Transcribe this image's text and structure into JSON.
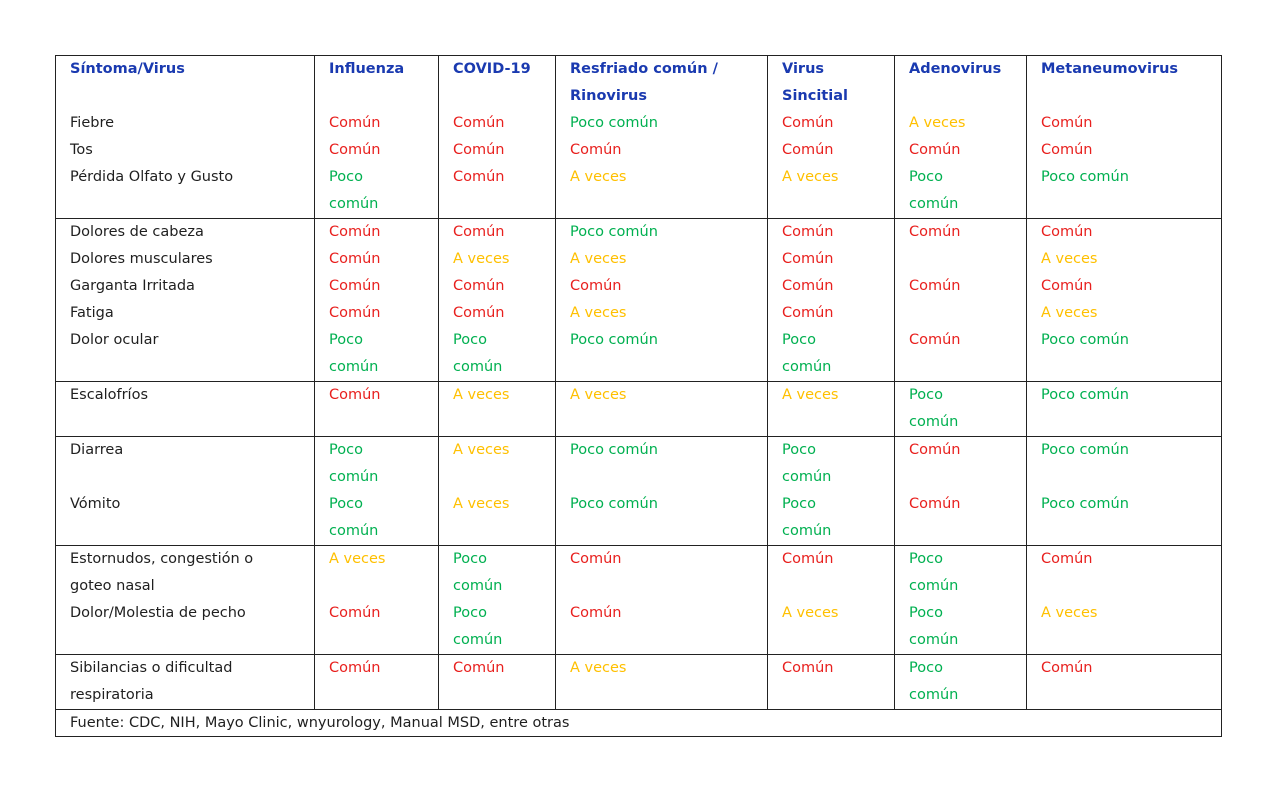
{
  "table": {
    "headers": [
      "Síntoma/Virus",
      "Influenza",
      "COVID-19",
      "Resfriado común / Rinovirus",
      "Virus Sincitial",
      "Adenovirus",
      "Metaneumovirus"
    ],
    "header_lines": {
      "symptom": [
        "Síntoma/Virus",
        ""
      ],
      "influenza": [
        "Influenza",
        ""
      ],
      "covid": [
        "COVID-19",
        ""
      ],
      "resfriado": [
        "Resfriado  común  /",
        "Rinovirus"
      ],
      "sincitial": [
        "Virus",
        "Sincitial"
      ],
      "adeno": [
        "Adenovirus",
        ""
      ],
      "metan": [
        "Metaneumovirus",
        ""
      ]
    },
    "groups": [
      {
        "rows": [
          {
            "symptom": [
              "Fiebre"
            ],
            "values": [
              [
                "Común"
              ],
              [
                "Común"
              ],
              [
                "Poco común"
              ],
              [
                "Común"
              ],
              [
                "A veces"
              ],
              [
                "Común"
              ]
            ]
          },
          {
            "symptom": [
              "Tos"
            ],
            "values": [
              [
                "Común"
              ],
              [
                "Común"
              ],
              [
                "Común"
              ],
              [
                "Común"
              ],
              [
                "Común"
              ],
              [
                "Común"
              ]
            ]
          },
          {
            "symptom": [
              "Pérdida Olfato y Gusto"
            ],
            "values": [
              [
                "Poco",
                "común"
              ],
              [
                "Común"
              ],
              [
                "A veces"
              ],
              [
                "A veces"
              ],
              [
                "Poco",
                "común"
              ],
              [
                "Poco común"
              ]
            ]
          }
        ]
      },
      {
        "rows": [
          {
            "symptom": [
              "Dolores de cabeza"
            ],
            "values": [
              [
                "Común"
              ],
              [
                "Común"
              ],
              [
                "Poco común"
              ],
              [
                "Común"
              ],
              [
                "Común"
              ],
              [
                "Común"
              ]
            ]
          },
          {
            "symptom": [
              "Dolores musculares"
            ],
            "values": [
              [
                "Común"
              ],
              [
                "A veces"
              ],
              [
                "A veces"
              ],
              [
                "Común"
              ],
              [
                ""
              ],
              [
                "A veces"
              ]
            ]
          },
          {
            "symptom": [
              "Garganta Irritada"
            ],
            "values": [
              [
                "Común"
              ],
              [
                "Común"
              ],
              [
                "Común"
              ],
              [
                "Común"
              ],
              [
                "Común"
              ],
              [
                "Común"
              ]
            ]
          },
          {
            "symptom": [
              "Fatiga"
            ],
            "values": [
              [
                "Común"
              ],
              [
                "Común"
              ],
              [
                "A veces"
              ],
              [
                "Común"
              ],
              [
                ""
              ],
              [
                "A veces"
              ]
            ]
          },
          {
            "symptom": [
              "Dolor ocular"
            ],
            "values": [
              [
                "Poco",
                "común"
              ],
              [
                "Poco",
                "común"
              ],
              [
                "Poco común"
              ],
              [
                "Poco",
                "común"
              ],
              [
                "Común"
              ],
              [
                "Poco común"
              ]
            ]
          }
        ]
      },
      {
        "rows": [
          {
            "symptom": [
              "Escalofríos"
            ],
            "values": [
              [
                "Común"
              ],
              [
                "A veces"
              ],
              [
                "A veces"
              ],
              [
                "A veces"
              ],
              [
                "Poco",
                "común"
              ],
              [
                "Poco común"
              ]
            ]
          }
        ]
      },
      {
        "rows": [
          {
            "symptom": [
              "Diarrea"
            ],
            "values": [
              [
                "Poco",
                "común"
              ],
              [
                "A veces"
              ],
              [
                "Poco común"
              ],
              [
                "Poco",
                "común"
              ],
              [
                "Común"
              ],
              [
                "Poco común"
              ]
            ]
          },
          {
            "symptom": [
              "Vómito"
            ],
            "values": [
              [
                "Poco",
                "común"
              ],
              [
                "A veces"
              ],
              [
                "Poco común"
              ],
              [
                "Poco",
                "común"
              ],
              [
                "Común"
              ],
              [
                "Poco común"
              ]
            ]
          }
        ]
      },
      {
        "rows": [
          {
            "symptom": [
              "Estornudos,  congestión  o",
              "goteo nasal"
            ],
            "values": [
              [
                "A veces"
              ],
              [
                "Poco",
                "común"
              ],
              [
                "Común"
              ],
              [
                "Común"
              ],
              [
                "Poco",
                "común"
              ],
              [
                "Común"
              ]
            ]
          },
          {
            "symptom": [
              "Dolor/Molestia de pecho"
            ],
            "values": [
              [
                "Común"
              ],
              [
                "Poco",
                "común"
              ],
              [
                "Común"
              ],
              [
                "A veces"
              ],
              [
                "Poco",
                "común"
              ],
              [
                "A veces"
              ]
            ]
          }
        ]
      },
      {
        "rows": [
          {
            "symptom": [
              "Sibilancias   o   dificultad",
              "respiratoria"
            ],
            "values": [
              [
                "Común"
              ],
              [
                "Común"
              ],
              [
                "A veces"
              ],
              [
                "Común"
              ],
              [
                "Poco",
                "común"
              ],
              [
                "Común"
              ]
            ]
          }
        ]
      }
    ],
    "source": "Fuente: CDC, NIH, Mayo Clinic, wnyurology, Manual MSD, entre otras"
  },
  "colors": {
    "header": "#1a3ab0",
    "comun": "#e8201e",
    "poco_comun": "#00b050",
    "a_veces": "#ffc000",
    "border": "#222222"
  }
}
